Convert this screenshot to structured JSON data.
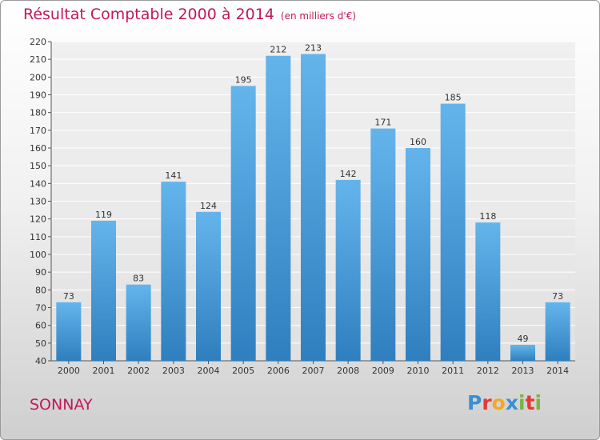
{
  "title": "Résultat Comptable 2000 à 2014",
  "unit": "(en milliers d'€)",
  "place": "SONNAY",
  "logo": {
    "letters": [
      "P",
      "r",
      "o",
      "x",
      "i",
      "t",
      "i"
    ],
    "colors": [
      "#3a8fd6",
      "#e53935",
      "#f5a623",
      "#3a8fd6",
      "#7cb342",
      "#e53935",
      "#7cb342"
    ]
  },
  "colors": {
    "bar_top": "#64b4ec",
    "bar_bottom": "#2f7fbf",
    "title": "#c2185b",
    "grid": "#ffffff"
  },
  "chart_data": {
    "type": "bar",
    "title": "Résultat Comptable 2000 à 2014",
    "ylabel": "(en milliers d'€)",
    "xlabel": "",
    "categories": [
      "2000",
      "2001",
      "2002",
      "2003",
      "2004",
      "2005",
      "2006",
      "2007",
      "2008",
      "2009",
      "2010",
      "2011",
      "2012",
      "2013",
      "2014"
    ],
    "values": [
      73,
      119,
      83,
      141,
      124,
      195,
      212,
      213,
      142,
      171,
      160,
      185,
      118,
      49,
      73
    ],
    "ylim": [
      40,
      220
    ],
    "yticks": [
      40,
      50,
      60,
      70,
      80,
      90,
      100,
      110,
      120,
      130,
      140,
      150,
      160,
      170,
      180,
      190,
      200,
      210,
      220
    ],
    "grid": true
  }
}
